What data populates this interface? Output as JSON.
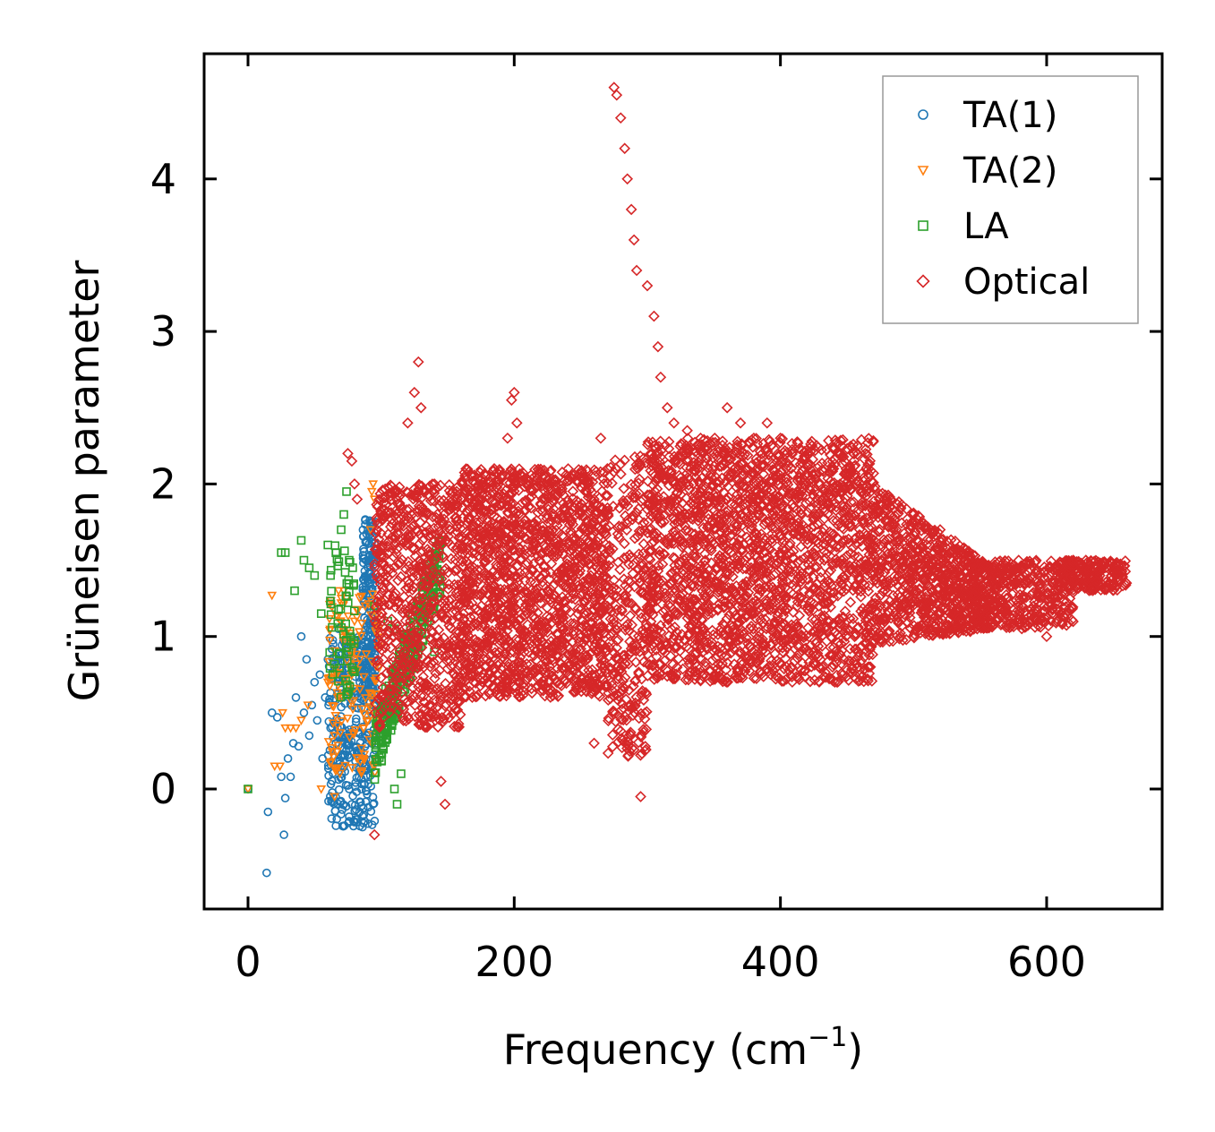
{
  "chart_data": {
    "type": "scatter",
    "title": "",
    "xlabel": "Frequency (cm",
    "xlabel_sup": "−1",
    "xlabel_end": ")",
    "ylabel": "Grüneisen parameter",
    "xlim": [
      -16,
      690
    ],
    "ylim": [
      -0.8,
      4.8
    ],
    "xticks": [
      0,
      200,
      400,
      600
    ],
    "yticks": [
      0,
      1,
      2,
      3,
      4
    ],
    "xtick_labels": [
      "0",
      "200",
      "400",
      "600"
    ],
    "ytick_labels": [
      "0",
      "1",
      "2",
      "3",
      "4"
    ],
    "legend_position": "top-right",
    "series": [
      {
        "name": "TA(1)",
        "marker": "circle",
        "color": "#1f77b4",
        "points": [
          [
            0,
            0
          ],
          [
            14,
            -0.55
          ],
          [
            15,
            -0.15
          ],
          [
            18,
            0.5
          ],
          [
            22,
            0.47
          ],
          [
            25,
            0.08
          ],
          [
            27,
            -0.3
          ],
          [
            28,
            -0.06
          ],
          [
            30,
            0.2
          ],
          [
            32,
            0.08
          ],
          [
            34,
            0.3
          ],
          [
            36,
            0.6
          ],
          [
            38,
            0.28
          ],
          [
            40,
            1.0
          ],
          [
            42,
            0.5
          ],
          [
            44,
            0.85
          ],
          [
            46,
            0.35
          ],
          [
            48,
            0.55
          ],
          [
            50,
            0.7
          ],
          [
            52,
            0.45
          ],
          [
            54,
            0.75
          ],
          [
            56,
            0.2
          ],
          [
            58,
            0.6
          ],
          [
            60,
            0.85
          ],
          [
            62,
            0.4
          ],
          [
            64,
            0.95
          ],
          [
            66,
            0.3
          ],
          [
            68,
            1.05
          ],
          [
            70,
            0.65
          ],
          [
            72,
            0.15
          ],
          [
            74,
            0.9
          ],
          [
            76,
            0.0
          ],
          [
            78,
            -0.1
          ],
          [
            80,
            0.4
          ],
          [
            82,
            -0.2
          ],
          [
            84,
            0.7
          ],
          [
            86,
            -0.25
          ],
          [
            88,
            0.9
          ],
          [
            90,
            1.2
          ],
          [
            91,
            1.5
          ],
          [
            92,
            1.75
          ],
          [
            93,
            0.3
          ],
          [
            94,
            -0.1
          ]
        ],
        "bands": [
          {
            "x": [
              60,
              96
            ],
            "y": [
              -0.25,
              1.0
            ],
            "n": 320
          },
          {
            "x": [
              86,
              96
            ],
            "y": [
              0.6,
              1.8
            ],
            "n": 180
          }
        ]
      },
      {
        "name": "TA(2)",
        "marker": "triangle-down",
        "color": "#ff7f0e",
        "points": [
          [
            0,
            0
          ],
          [
            18,
            1.27
          ],
          [
            20,
            0.15
          ],
          [
            24,
            0.15
          ],
          [
            26,
            0.5
          ],
          [
            28,
            0.4
          ],
          [
            32,
            0.4
          ],
          [
            36,
            0.4
          ],
          [
            40,
            0.45
          ],
          [
            45,
            0.55
          ],
          [
            55,
            0.0
          ],
          [
            60,
            0.7
          ],
          [
            65,
            -0.05
          ],
          [
            68,
            1.3
          ],
          [
            70,
            1.22
          ],
          [
            72,
            1.3
          ],
          [
            74,
            1.25
          ],
          [
            78,
            0.9
          ],
          [
            80,
            1.1
          ],
          [
            84,
            0.85
          ],
          [
            88,
            1.2
          ],
          [
            92,
            1.7
          ],
          [
            93,
            1.95
          ],
          [
            94,
            2.0
          ],
          [
            95,
            1.9
          ]
        ],
        "bands": [
          {
            "x": [
              60,
              100
            ],
            "y": [
              0.1,
              1.3
            ],
            "n": 150
          }
        ]
      },
      {
        "name": "LA",
        "marker": "square",
        "color": "#2ca02c",
        "points": [
          [
            0,
            0
          ],
          [
            25,
            1.55
          ],
          [
            28,
            1.55
          ],
          [
            35,
            1.3
          ],
          [
            40,
            1.63
          ],
          [
            42,
            1.5
          ],
          [
            46,
            1.45
          ],
          [
            50,
            1.4
          ],
          [
            55,
            1.15
          ],
          [
            60,
            1.6
          ],
          [
            62,
            1.4
          ],
          [
            66,
            1.55
          ],
          [
            70,
            1.7
          ],
          [
            72,
            1.8
          ],
          [
            74,
            1.95
          ],
          [
            76,
            1.5
          ],
          [
            95,
            1.2
          ],
          [
            100,
            0.3
          ],
          [
            105,
            1.1
          ],
          [
            110,
            1.05
          ],
          [
            110,
            0.0
          ],
          [
            112,
            -0.1
          ],
          [
            115,
            0.1
          ],
          [
            120,
            1.0
          ],
          [
            140,
            0.9
          ]
        ],
        "bands": [
          {
            "x": [
              60,
              80
            ],
            "y": [
              0.6,
              1.6
            ],
            "n": 60
          },
          {
            "x": [
              95,
              145
            ],
            "y": [
              0.3,
              1.55
            ],
            "n": 300,
            "trend": true
          }
        ]
      },
      {
        "name": "Optical",
        "marker": "diamond",
        "color": "#d62728",
        "points": [
          [
            75,
            2.2
          ],
          [
            78,
            2.15
          ],
          [
            80,
            2.0
          ],
          [
            82,
            1.9
          ],
          [
            95,
            -0.3
          ],
          [
            100,
            1.8
          ],
          [
            120,
            2.4
          ],
          [
            125,
            2.6
          ],
          [
            128,
            2.8
          ],
          [
            130,
            2.5
          ],
          [
            140,
            2.0
          ],
          [
            145,
            0.05
          ],
          [
            148,
            -0.1
          ],
          [
            150,
            0.6
          ],
          [
            160,
            1.9
          ],
          [
            175,
            2.0
          ],
          [
            185,
            2.1
          ],
          [
            195,
            2.3
          ],
          [
            198,
            2.55
          ],
          [
            200,
            2.6
          ],
          [
            202,
            2.4
          ],
          [
            210,
            2.0
          ],
          [
            230,
            1.9
          ],
          [
            260,
            0.3
          ],
          [
            265,
            2.3
          ],
          [
            270,
            2.1
          ],
          [
            275,
            4.6
          ],
          [
            277,
            4.55
          ],
          [
            280,
            4.4
          ],
          [
            283,
            4.2
          ],
          [
            285,
            4.0
          ],
          [
            288,
            3.8
          ],
          [
            290,
            3.6
          ],
          [
            292,
            3.4
          ],
          [
            295,
            -0.05
          ],
          [
            300,
            3.3
          ],
          [
            305,
            3.1
          ],
          [
            308,
            2.9
          ],
          [
            310,
            2.7
          ],
          [
            315,
            2.5
          ],
          [
            320,
            2.4
          ],
          [
            330,
            2.35
          ],
          [
            340,
            2.3
          ],
          [
            350,
            2.2
          ],
          [
            360,
            2.5
          ],
          [
            370,
            2.4
          ],
          [
            380,
            2.3
          ],
          [
            390,
            2.4
          ],
          [
            400,
            2.3
          ],
          [
            420,
            2.2
          ],
          [
            440,
            2.1
          ],
          [
            460,
            2.0
          ],
          [
            480,
            1.9
          ],
          [
            500,
            1.8
          ],
          [
            520,
            1.7
          ],
          [
            540,
            1.55
          ],
          [
            560,
            1.45
          ],
          [
            580,
            1.35
          ],
          [
            600,
            1.0
          ],
          [
            610,
            1.45
          ],
          [
            620,
            1.5
          ],
          [
            630,
            1.45
          ],
          [
            640,
            1.4
          ],
          [
            650,
            1.38
          ],
          [
            660,
            1.35
          ]
        ],
        "bands": [
          {
            "x": [
              95,
              160
            ],
            "y": [
              0.4,
              2.0
            ],
            "n": 700
          },
          {
            "x": [
              160,
              270
            ],
            "y": [
              0.6,
              2.1
            ],
            "n": 1600
          },
          {
            "x": [
              270,
              300
            ],
            "y": [
              0.2,
              2.2
            ],
            "n": 300
          },
          {
            "x": [
              300,
              470
            ],
            "y": [
              0.7,
              2.3
            ],
            "n": 2200
          },
          {
            "x": [
              470,
              560
            ],
            "y": [
              0.95,
              2.0
            ],
            "n": 900,
            "taper": true
          },
          {
            "x": [
              560,
              620
            ],
            "y": [
              1.05,
              1.5
            ],
            "n": 350
          },
          {
            "x": [
              615,
              660
            ],
            "y": [
              1.3,
              1.5
            ],
            "n": 200
          }
        ]
      }
    ]
  }
}
